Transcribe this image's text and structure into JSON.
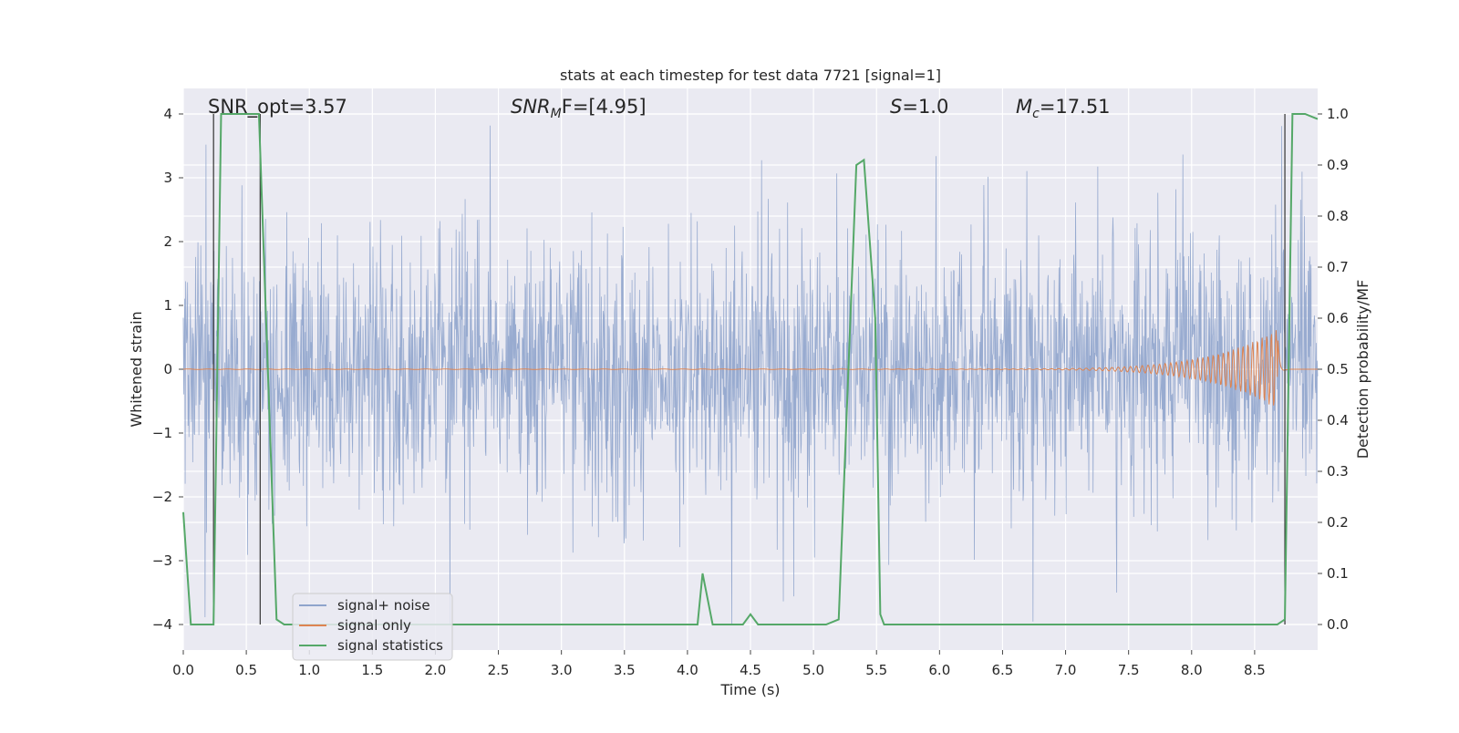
{
  "chart_data": {
    "type": "line",
    "title": "stats at each timestep for test data 7721 [signal=1]",
    "xlabel": "Time (s)",
    "ylabel_left": "Whitened strain",
    "ylabel_right": "Detection probability/MF",
    "xlim": [
      0.0,
      9.0
    ],
    "ylim_left": [
      -4.4,
      4.4
    ],
    "ylim_right": [
      -0.05,
      1.05
    ],
    "x_ticks": [
      "0.0",
      "0.5",
      "1.0",
      "1.5",
      "2.0",
      "2.5",
      "3.0",
      "3.5",
      "4.0",
      "4.5",
      "5.0",
      "5.5",
      "6.0",
      "6.5",
      "7.0",
      "7.5",
      "8.0",
      "8.5"
    ],
    "y_ticks_left": [
      "4",
      "3",
      "2",
      "1",
      "0",
      "−1",
      "−2",
      "−3",
      "−4"
    ],
    "y_ticks_right": [
      "1.0",
      "0.9",
      "0.8",
      "0.7",
      "0.6",
      "0.5",
      "0.4",
      "0.3",
      "0.2",
      "0.1",
      "0.0"
    ],
    "annotations": {
      "snr_opt": "SNR_opt=3.57",
      "snr_mf_sym": "SNR",
      "snr_mf_sub": "M",
      "snr_mf_rest": "F=[4.95]",
      "s_sym": "S",
      "s_rest": "=1.0",
      "mc_sym": "M",
      "mc_sub": "c",
      "mc_rest": "=17.51"
    },
    "legend": [
      "signal+ noise",
      "signal only",
      "signal statistics"
    ],
    "colors": {
      "noise": "#8fa4cc",
      "signal": "#dd8452",
      "stats": "#55a868",
      "vline": "#333333",
      "plot_bg": "#eaeaf2",
      "grid": "#ffffff"
    },
    "noise_band": {
      "typical_abs": 1.5,
      "min": -4.0,
      "max": 4.0
    },
    "signal_chirp": {
      "start_t": 5.5,
      "peak_t": 8.68,
      "peak_amp": 0.62
    },
    "vertical_lines_t": [
      0.24,
      0.61,
      8.74
    ],
    "series_stats": {
      "name": "signal statistics",
      "x": [
        0.0,
        0.06,
        0.24,
        0.3,
        0.36,
        0.6,
        0.74,
        0.8,
        1.0,
        4.08,
        4.12,
        4.2,
        4.44,
        4.5,
        4.56,
        5.1,
        5.2,
        5.34,
        5.4,
        5.49,
        5.53,
        5.56,
        8.68,
        8.74,
        8.8,
        8.9,
        9.0
      ],
      "y": [
        0.22,
        0.0,
        0.0,
        1.0,
        1.0,
        1.0,
        0.01,
        0.0,
        0.0,
        0.0,
        0.1,
        0.0,
        0.0,
        0.02,
        0.0,
        0.0,
        0.01,
        0.9,
        0.91,
        0.6,
        0.02,
        0.0,
        0.0,
        0.01,
        1.0,
        1.0,
        0.99
      ]
    }
  }
}
